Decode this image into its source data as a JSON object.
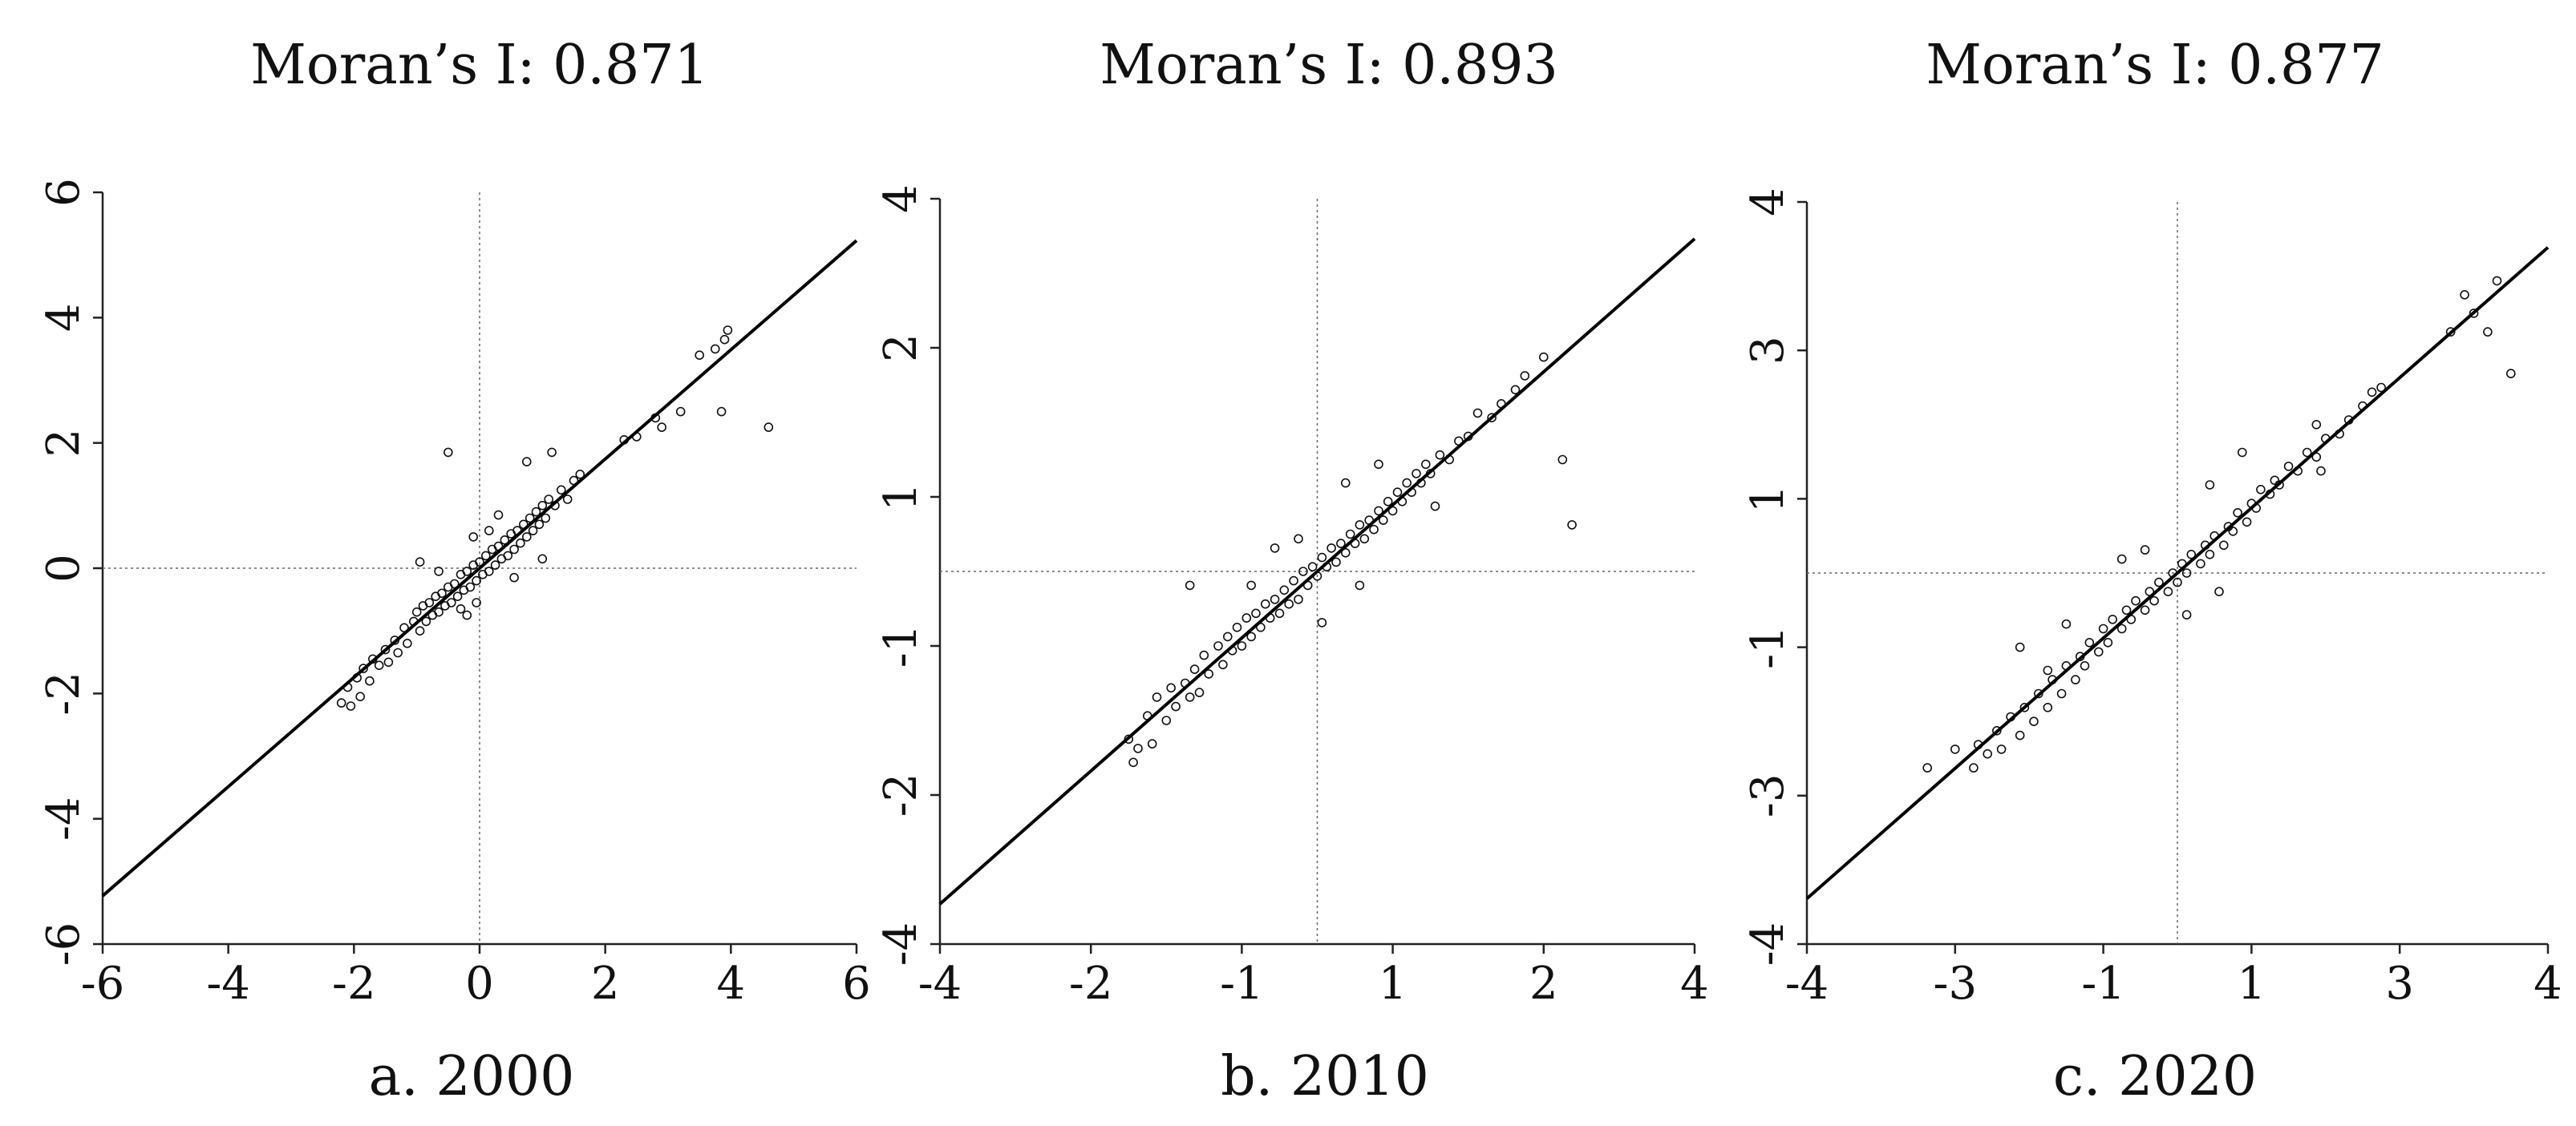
{
  "chart_data": [
    {
      "type": "scatter",
      "title": "Moran’s I: 0.871",
      "caption": "a. 2000",
      "xlim": [
        -6,
        6
      ],
      "ylim": [
        -6,
        6
      ],
      "xticks": [
        "-6",
        "-4",
        "-2",
        "0",
        "2",
        "4",
        "6"
      ],
      "yticks": [
        "-6",
        "-4",
        "-2",
        "0",
        "2",
        "4",
        "6"
      ],
      "grid": false,
      "reference_lines": {
        "x": 0,
        "y": 0
      },
      "fit_line": {
        "x": [
          -6,
          6
        ],
        "y": [
          -5.23,
          5.23
        ]
      },
      "points": [
        [
          -2.2,
          -2.15
        ],
        [
          -2.1,
          -1.9
        ],
        [
          -2.05,
          -2.2
        ],
        [
          -1.95,
          -1.75
        ],
        [
          -1.9,
          -2.05
        ],
        [
          -1.85,
          -1.6
        ],
        [
          -1.75,
          -1.8
        ],
        [
          -1.7,
          -1.45
        ],
        [
          -1.6,
          -1.55
        ],
        [
          -1.5,
          -1.3
        ],
        [
          -1.45,
          -1.5
        ],
        [
          -1.35,
          -1.15
        ],
        [
          -1.3,
          -1.35
        ],
        [
          -1.2,
          -0.95
        ],
        [
          -1.15,
          -1.2
        ],
        [
          -1.05,
          -0.85
        ],
        [
          -1.0,
          -0.7
        ],
        [
          -0.95,
          -1.0
        ],
        [
          -0.9,
          -0.6
        ],
        [
          -0.85,
          -0.85
        ],
        [
          -0.8,
          -0.55
        ],
        [
          -0.75,
          -0.75
        ],
        [
          -0.7,
          -0.45
        ],
        [
          -0.65,
          -0.7
        ],
        [
          -0.6,
          -0.4
        ],
        [
          -0.55,
          -0.6
        ],
        [
          -0.5,
          -0.3
        ],
        [
          -0.45,
          -0.55
        ],
        [
          -0.4,
          -0.25
        ],
        [
          -0.35,
          -0.45
        ],
        [
          -0.3,
          -0.1
        ],
        [
          -0.25,
          -0.35
        ],
        [
          -0.2,
          -0.05
        ],
        [
          -0.15,
          -0.3
        ],
        [
          -0.1,
          0.05
        ],
        [
          -0.05,
          -0.2
        ],
        [
          0.0,
          0.1
        ],
        [
          0.05,
          -0.1
        ],
        [
          0.1,
          0.2
        ],
        [
          0.15,
          -0.05
        ],
        [
          0.2,
          0.3
        ],
        [
          0.25,
          0.05
        ],
        [
          0.3,
          0.35
        ],
        [
          0.35,
          0.15
        ],
        [
          0.4,
          0.45
        ],
        [
          0.45,
          0.2
        ],
        [
          0.5,
          0.55
        ],
        [
          0.55,
          0.3
        ],
        [
          0.6,
          0.6
        ],
        [
          0.65,
          0.4
        ],
        [
          0.7,
          0.7
        ],
        [
          0.75,
          0.5
        ],
        [
          0.8,
          0.8
        ],
        [
          0.85,
          0.6
        ],
        [
          0.9,
          0.9
        ],
        [
          0.95,
          0.7
        ],
        [
          1.0,
          1.0
        ],
        [
          1.05,
          0.8
        ],
        [
          1.1,
          1.1
        ],
        [
          1.2,
          1.0
        ],
        [
          1.3,
          1.25
        ],
        [
          1.4,
          1.1
        ],
        [
          1.5,
          1.4
        ],
        [
          1.6,
          1.5
        ],
        [
          -0.5,
          1.85
        ],
        [
          -0.95,
          0.1
        ],
        [
          -0.2,
          -0.75
        ],
        [
          -0.05,
          -0.55
        ],
        [
          0.3,
          0.85
        ],
        [
          0.75,
          1.7
        ],
        [
          1.15,
          1.85
        ],
        [
          1.0,
          0.15
        ],
        [
          -0.1,
          0.5
        ],
        [
          0.55,
          -0.15
        ],
        [
          -0.65,
          -0.05
        ],
        [
          2.3,
          2.05
        ],
        [
          2.5,
          2.1
        ],
        [
          2.8,
          2.4
        ],
        [
          2.9,
          2.25
        ],
        [
          3.2,
          2.5
        ],
        [
          3.5,
          3.4
        ],
        [
          3.75,
          3.5
        ],
        [
          3.9,
          3.65
        ],
        [
          3.95,
          3.8
        ],
        [
          3.85,
          2.5
        ],
        [
          4.6,
          2.25
        ],
        [
          -0.3,
          -0.65
        ],
        [
          0.15,
          0.6
        ]
      ]
    },
    {
      "type": "scatter",
      "title": "Moran’s I: 0.893",
      "caption": "b. 2010",
      "xlim": [
        -4,
        4
      ],
      "ylim": [
        -4,
        4
      ],
      "xticks": [
        "-4",
        "-2",
        "-1",
        "1",
        "2",
        "4"
      ],
      "yticks": [
        "-4",
        "-2",
        "-1",
        "1",
        "2",
        "4"
      ],
      "grid": false,
      "reference_lines": {
        "x": 0,
        "y": 0
      },
      "fit_line": {
        "x": [
          -4,
          4
        ],
        "y": [
          -3.57,
          3.57
        ]
      },
      "points": [
        [
          -2.0,
          -1.8
        ],
        [
          -1.95,
          -2.05
        ],
        [
          -1.9,
          -1.9
        ],
        [
          -1.8,
          -1.55
        ],
        [
          -1.75,
          -1.85
        ],
        [
          -1.7,
          -1.35
        ],
        [
          -1.6,
          -1.6
        ],
        [
          -1.55,
          -1.25
        ],
        [
          -1.5,
          -1.45
        ],
        [
          -1.4,
          -1.2
        ],
        [
          -1.35,
          -1.35
        ],
        [
          -1.3,
          -1.05
        ],
        [
          -1.25,
          -1.3
        ],
        [
          -1.2,
          -0.9
        ],
        [
          -1.15,
          -1.1
        ],
        [
          -1.05,
          -0.8
        ],
        [
          -1.0,
          -1.0
        ],
        [
          -0.95,
          -0.7
        ],
        [
          -0.9,
          -0.85
        ],
        [
          -0.85,
          -0.6
        ],
        [
          -0.8,
          -0.8
        ],
        [
          -0.75,
          -0.5
        ],
        [
          -0.7,
          -0.7
        ],
        [
          -0.65,
          -0.45
        ],
        [
          -0.6,
          -0.6
        ],
        [
          -0.55,
          -0.35
        ],
        [
          -0.5,
          -0.5
        ],
        [
          -0.45,
          -0.3
        ],
        [
          -0.4,
          -0.45
        ],
        [
          -0.35,
          -0.2
        ],
        [
          -0.3,
          -0.35
        ],
        [
          -0.25,
          -0.1
        ],
        [
          -0.2,
          -0.3
        ],
        [
          -0.15,
          0.0
        ],
        [
          -0.1,
          -0.15
        ],
        [
          -0.05,
          0.05
        ],
        [
          0.0,
          -0.05
        ],
        [
          0.05,
          0.15
        ],
        [
          0.1,
          0.05
        ],
        [
          0.15,
          0.25
        ],
        [
          0.2,
          0.1
        ],
        [
          0.25,
          0.3
        ],
        [
          0.3,
          0.2
        ],
        [
          0.35,
          0.4
        ],
        [
          0.4,
          0.3
        ],
        [
          0.45,
          0.5
        ],
        [
          0.5,
          0.35
        ],
        [
          0.55,
          0.55
        ],
        [
          0.6,
          0.45
        ],
        [
          0.65,
          0.65
        ],
        [
          0.7,
          0.55
        ],
        [
          0.75,
          0.75
        ],
        [
          0.8,
          0.65
        ],
        [
          0.85,
          0.85
        ],
        [
          0.9,
          0.75
        ],
        [
          0.95,
          0.95
        ],
        [
          1.0,
          0.85
        ],
        [
          1.05,
          1.05
        ],
        [
          1.1,
          0.95
        ],
        [
          1.15,
          1.15
        ],
        [
          1.2,
          1.05
        ],
        [
          1.3,
          1.25
        ],
        [
          1.4,
          1.2
        ],
        [
          1.5,
          1.4
        ],
        [
          1.6,
          1.45
        ],
        [
          1.7,
          1.7
        ],
        [
          1.85,
          1.65
        ],
        [
          1.95,
          1.8
        ],
        [
          2.1,
          1.95
        ],
        [
          2.2,
          2.1
        ],
        [
          2.4,
          2.3
        ],
        [
          2.6,
          1.2
        ],
        [
          2.7,
          0.5
        ],
        [
          -1.35,
          -0.15
        ],
        [
          -0.45,
          0.25
        ],
        [
          0.05,
          -0.55
        ],
        [
          0.3,
          0.95
        ],
        [
          0.65,
          1.15
        ],
        [
          1.25,
          0.7
        ],
        [
          -0.7,
          -0.15
        ],
        [
          -0.2,
          0.35
        ],
        [
          0.45,
          -0.15
        ]
      ]
    },
    {
      "type": "scatter",
      "title": "Moran’s I: 0.877",
      "caption": "c. 2020",
      "xlim": [
        -4,
        4
      ],
      "ylim": [
        -4,
        4
      ],
      "xticks": [
        "-4",
        "-3",
        "-1",
        "1",
        "3",
        "4"
      ],
      "yticks": [
        "-4",
        "-3",
        "-1",
        "1",
        "3",
        "4"
      ],
      "grid": false,
      "reference_lines": {
        "x": 0,
        "y": 0
      },
      "fit_line": {
        "x": [
          -4,
          4
        ],
        "y": [
          -3.51,
          3.51
        ]
      },
      "points": [
        [
          -2.2,
          -2.1
        ],
        [
          -2.15,
          -1.85
        ],
        [
          -2.05,
          -1.95
        ],
        [
          -1.95,
          -1.7
        ],
        [
          -1.9,
          -1.9
        ],
        [
          -1.8,
          -1.55
        ],
        [
          -1.7,
          -1.75
        ],
        [
          -1.65,
          -1.45
        ],
        [
          -1.55,
          -1.6
        ],
        [
          -1.5,
          -1.3
        ],
        [
          -1.4,
          -1.45
        ],
        [
          -1.35,
          -1.15
        ],
        [
          -1.25,
          -1.3
        ],
        [
          -1.2,
          -1.0
        ],
        [
          -1.1,
          -1.15
        ],
        [
          -1.05,
          -0.9
        ],
        [
          -1.0,
          -1.0
        ],
        [
          -0.95,
          -0.75
        ],
        [
          -0.85,
          -0.85
        ],
        [
          -0.8,
          -0.6
        ],
        [
          -0.75,
          -0.75
        ],
        [
          -0.7,
          -0.5
        ],
        [
          -0.6,
          -0.6
        ],
        [
          -0.55,
          -0.4
        ],
        [
          -0.5,
          -0.5
        ],
        [
          -0.45,
          -0.3
        ],
        [
          -0.35,
          -0.4
        ],
        [
          -0.3,
          -0.2
        ],
        [
          -0.25,
          -0.3
        ],
        [
          -0.2,
          -0.1
        ],
        [
          -0.1,
          -0.2
        ],
        [
          -0.05,
          0.0
        ],
        [
          0.0,
          -0.1
        ],
        [
          0.05,
          0.1
        ],
        [
          0.1,
          0.0
        ],
        [
          0.15,
          0.2
        ],
        [
          0.25,
          0.1
        ],
        [
          0.3,
          0.3
        ],
        [
          0.35,
          0.2
        ],
        [
          0.4,
          0.4
        ],
        [
          0.5,
          0.3
        ],
        [
          0.55,
          0.5
        ],
        [
          0.6,
          0.45
        ],
        [
          0.65,
          0.65
        ],
        [
          0.75,
          0.55
        ],
        [
          0.8,
          0.75
        ],
        [
          0.85,
          0.7
        ],
        [
          0.9,
          0.9
        ],
        [
          1.0,
          0.85
        ],
        [
          1.05,
          1.0
        ],
        [
          1.1,
          0.95
        ],
        [
          1.2,
          1.15
        ],
        [
          1.3,
          1.1
        ],
        [
          1.4,
          1.3
        ],
        [
          1.5,
          1.25
        ],
        [
          1.6,
          1.45
        ],
        [
          1.75,
          1.5
        ],
        [
          1.85,
          1.65
        ],
        [
          2.0,
          1.8
        ],
        [
          2.1,
          1.95
        ],
        [
          2.2,
          2.0
        ],
        [
          -2.4,
          -1.9
        ],
        [
          -2.7,
          -2.1
        ],
        [
          -1.7,
          -0.8
        ],
        [
          -1.4,
          -1.05
        ],
        [
          -0.6,
          0.15
        ],
        [
          0.35,
          0.95
        ],
        [
          0.7,
          1.3
        ],
        [
          1.5,
          1.6
        ],
        [
          1.55,
          1.1
        ],
        [
          0.1,
          -0.45
        ],
        [
          -0.35,
          0.25
        ],
        [
          2.95,
          2.6
        ],
        [
          3.1,
          3.0
        ],
        [
          3.2,
          2.8
        ],
        [
          3.45,
          3.15
        ],
        [
          3.35,
          2.6
        ],
        [
          3.6,
          2.15
        ],
        [
          -1.2,
          -0.55
        ],
        [
          0.45,
          -0.2
        ]
      ]
    }
  ]
}
